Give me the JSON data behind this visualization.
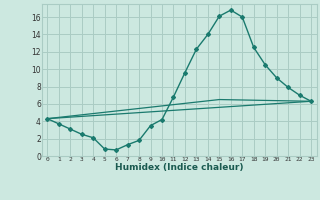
{
  "xlabel": "Humidex (Indice chaleur)",
  "background_color": "#cce8e0",
  "grid_color": "#aaccC4",
  "line_color": "#1a7a6e",
  "x_ticks": [
    0,
    1,
    2,
    3,
    4,
    5,
    6,
    7,
    8,
    9,
    10,
    11,
    12,
    13,
    14,
    15,
    16,
    17,
    18,
    19,
    20,
    21,
    22,
    23
  ],
  "x_tick_labels": [
    "0",
    "1",
    "2",
    "3",
    "4",
    "5",
    "6",
    "7",
    "8",
    "9",
    "10",
    "11",
    "12",
    "13",
    "14",
    "15",
    "16",
    "17",
    "18",
    "19",
    "20",
    "21",
    "22",
    "23"
  ],
  "y_ticks": [
    0,
    2,
    4,
    6,
    8,
    10,
    12,
    14,
    16
  ],
  "ylim": [
    0,
    17.5
  ],
  "xlim": [
    -0.5,
    23.5
  ],
  "line1_x": [
    0,
    1,
    2,
    3,
    4,
    5,
    6,
    7,
    8,
    9,
    10,
    11,
    12,
    13,
    14,
    15,
    16,
    17,
    18,
    19,
    20,
    21,
    22,
    23
  ],
  "line1_y": [
    4.3,
    3.7,
    3.1,
    2.5,
    2.1,
    0.8,
    0.7,
    1.3,
    1.8,
    3.5,
    4.2,
    6.8,
    9.6,
    12.3,
    14.0,
    16.1,
    16.8,
    16.0,
    12.5,
    10.5,
    9.0,
    7.9,
    7.0,
    6.3
  ],
  "line2_x": [
    0,
    23
  ],
  "line2_y": [
    4.3,
    6.3
  ],
  "line3_x": [
    0,
    15,
    23
  ],
  "line3_y": [
    4.3,
    6.5,
    6.3
  ]
}
